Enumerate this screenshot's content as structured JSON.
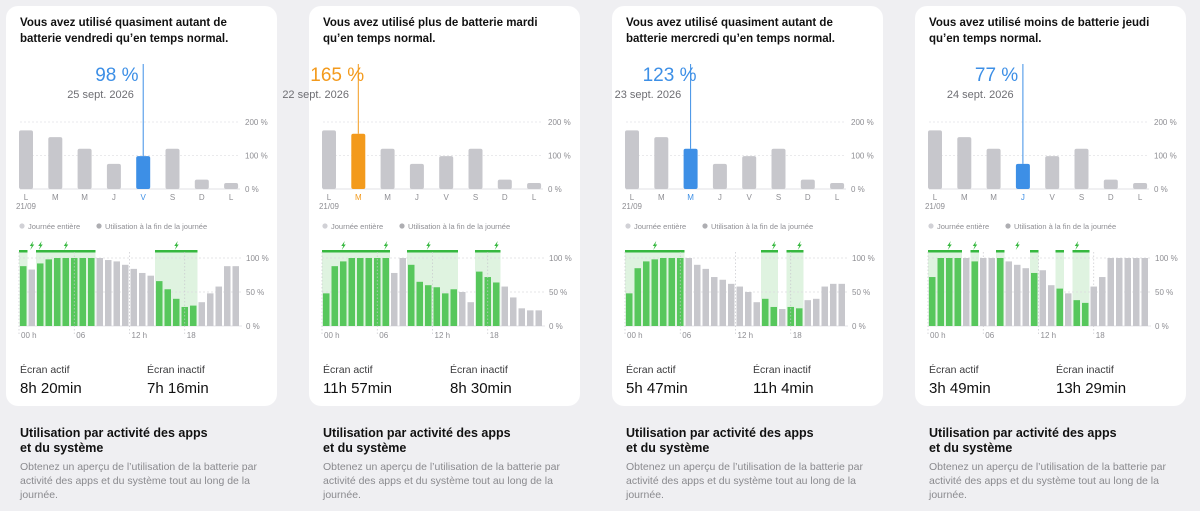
{
  "colors": {
    "blue": "#3d8fe6",
    "orange": "#f39a1c",
    "gray": "#c7c7cc",
    "green": "#57c75c",
    "green_bg": "#dff3e0",
    "green_line": "#36b83f"
  },
  "labels": {
    "legend_full": "Journée entière",
    "legend_end": "Utilisation à la fin de la journée",
    "y_ticks": [
      "200 %",
      "100 %",
      "0 %"
    ],
    "pct_ticks": [
      "100 %",
      "50 %",
      "0 %"
    ],
    "hour_ticks": [
      "00 h",
      "06",
      "12 h",
      "18"
    ],
    "day_letters": [
      "L",
      "M",
      "M",
      "J",
      "V",
      "S",
      "D",
      "L"
    ],
    "week_start": "21/09",
    "screen_on": "Écran actif",
    "screen_off": "Écran inactif"
  },
  "cards": [
    {
      "headline": "Vous avez utilisé quasiment autant de batterie vendredi qu’en temps normal.",
      "pct": "98 %",
      "date": "25 sept. 2026",
      "accent": "blue",
      "highlight": 4,
      "daily_values": [
        175,
        155,
        120,
        75,
        98,
        120,
        28,
        18
      ],
      "hourly_levels": [
        88,
        83,
        92,
        98,
        100,
        100,
        100,
        100,
        100,
        100,
        97,
        95,
        90,
        84,
        78,
        74,
        66,
        54,
        40,
        28,
        30,
        35,
        48,
        58,
        88,
        88
      ],
      "charging_ranges": [
        [
          0,
          1
        ],
        [
          2,
          3
        ],
        [
          3,
          9
        ],
        [
          16,
          21
        ]
      ],
      "bolts": [
        1,
        2,
        5,
        18
      ],
      "screen_on_value": "8h 20min",
      "screen_off_value": "7h 16min",
      "section_title": "Utilisation par activité des apps et du système",
      "section_desc": "Obtenez un aperçu de l’utilisation de la batterie par activité des apps et du système tout au long de la journée."
    },
    {
      "headline": "Vous avez utilisé plus de batterie mardi qu’en temps normal.",
      "pct": "165 %",
      "date": "22 sept. 2026",
      "accent": "orange",
      "highlight": 1,
      "daily_values": [
        175,
        165,
        120,
        75,
        98,
        120,
        28,
        18
      ],
      "hourly_levels": [
        48,
        88,
        95,
        100,
        100,
        100,
        100,
        100,
        78,
        100,
        90,
        65,
        60,
        57,
        48,
        54,
        50,
        35,
        80,
        72,
        64,
        58,
        42,
        26,
        23,
        23
      ],
      "charging_ranges": [
        [
          0,
          6
        ],
        [
          6,
          7
        ],
        [
          7,
          8
        ],
        [
          10,
          16
        ],
        [
          18,
          21
        ]
      ],
      "bolts": [
        2,
        7,
        12,
        20
      ],
      "screen_on_value": "11h 57min",
      "screen_off_value": "8h 30min",
      "section_title": "Utilisation par activité des apps et du système",
      "section_desc": "Obtenez un aperçu de l’utilisation de la batterie par activité des apps et du système tout au long de la journée."
    },
    {
      "headline": "Vous avez utilisé quasiment autant de batterie mercredi qu’en temps normal.",
      "pct": "123 %",
      "date": "23 sept. 2026",
      "accent": "blue",
      "highlight": 2,
      "daily_values": [
        175,
        155,
        120,
        75,
        98,
        120,
        28,
        18
      ],
      "hourly_levels": [
        48,
        85,
        95,
        98,
        100,
        100,
        100,
        100,
        90,
        84,
        72,
        68,
        62,
        58,
        50,
        35,
        40,
        28,
        25,
        28,
        26,
        38,
        40,
        58,
        62,
        62
      ],
      "charging_ranges": [
        [
          0,
          7
        ],
        [
          16,
          18
        ],
        [
          19,
          21
        ]
      ],
      "bolts": [
        3,
        17,
        20
      ],
      "screen_on_value": "5h 47min",
      "screen_off_value": "11h 4min",
      "section_title": "Utilisation par activité des apps et du système",
      "section_desc": "Obtenez un aperçu de l’utilisation de la batterie par activité des apps et du système tout au long de la journée."
    },
    {
      "headline": "Vous avez utilisé moins de batterie jeudi qu’en temps normal.",
      "pct": "77 %",
      "date": "24 sept. 2026",
      "accent": "blue",
      "highlight": 3,
      "daily_values": [
        175,
        155,
        120,
        75,
        98,
        120,
        28,
        18
      ],
      "hourly_levels": [
        72,
        100,
        100,
        100,
        100,
        95,
        100,
        100,
        100,
        95,
        90,
        85,
        78,
        82,
        60,
        55,
        48,
        38,
        34,
        58,
        72,
        100,
        100,
        100,
        100,
        100
      ],
      "charging_ranges": [
        [
          0,
          4
        ],
        [
          5,
          6
        ],
        [
          8,
          9
        ],
        [
          12,
          13
        ],
        [
          15,
          16
        ],
        [
          17,
          19
        ]
      ],
      "bolts": [
        2,
        5,
        10,
        17
      ],
      "screen_on_value": "3h 49min",
      "screen_off_value": "13h 29min",
      "section_title": "Utilisation par activité des apps et du système",
      "section_desc": "Obtenez un aperçu de l’utilisation de la batterie par activité des apps et du système tout au long de la journée."
    }
  ]
}
